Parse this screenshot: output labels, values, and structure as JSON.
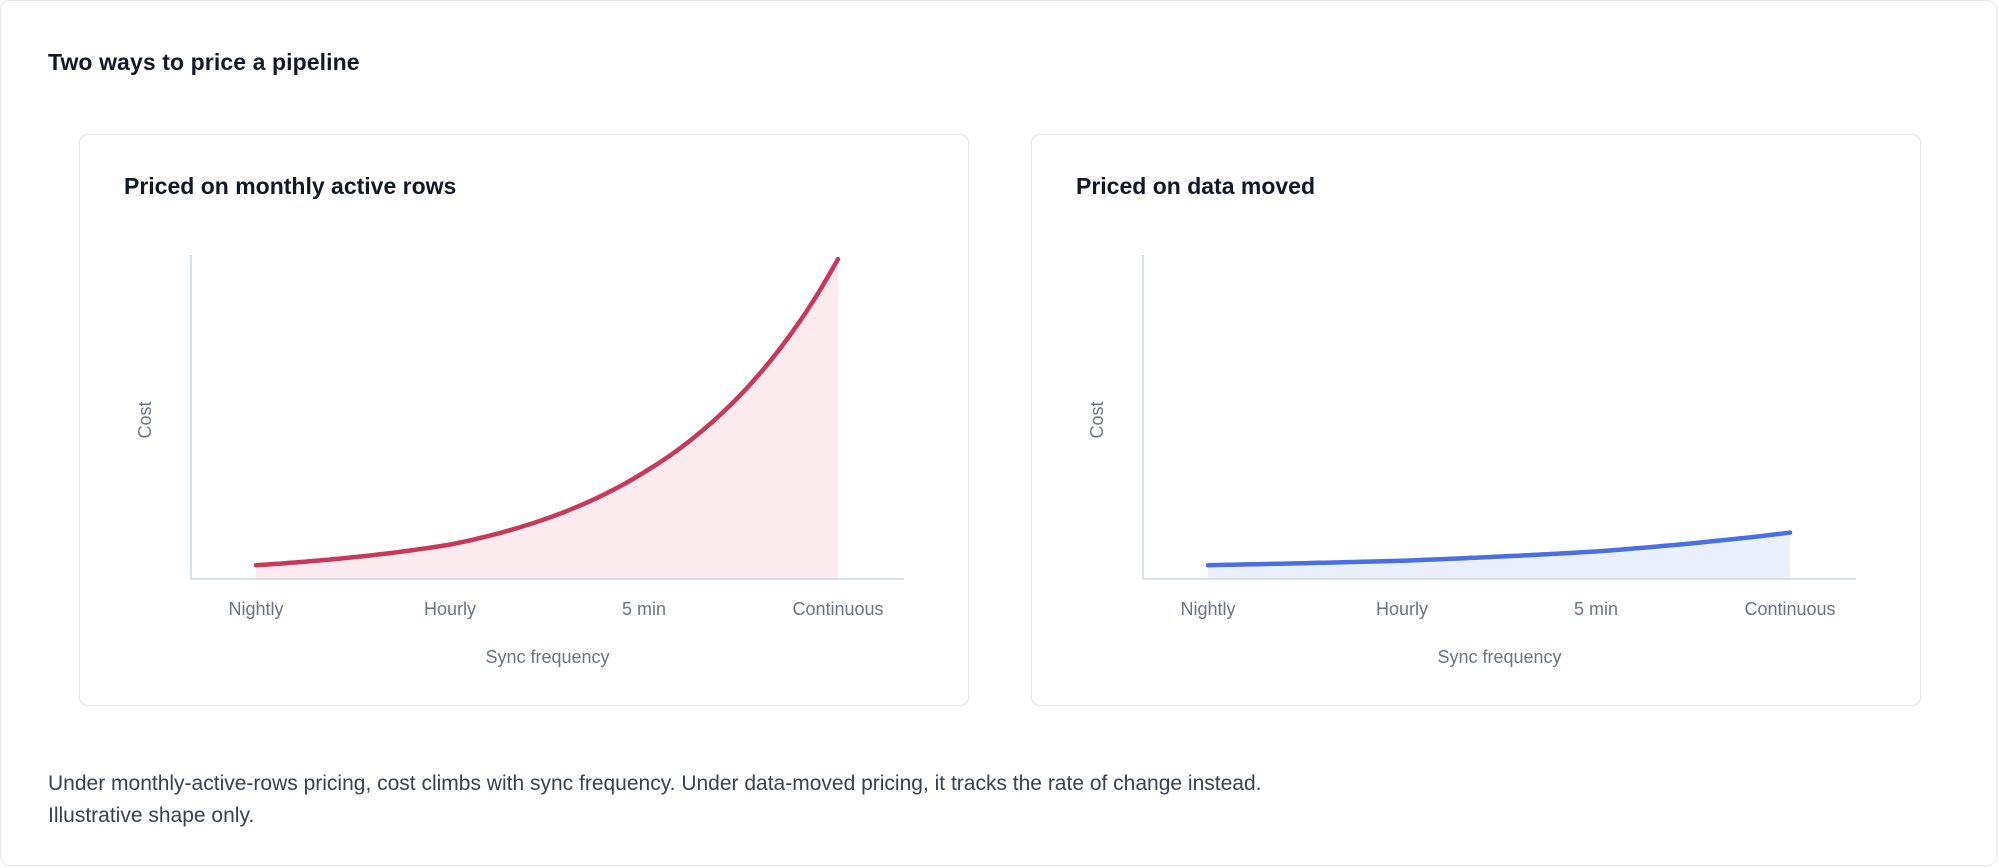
{
  "page": {
    "title": "Two ways to price a pipeline",
    "caption_line1": "Under monthly-active-rows pricing, cost climbs with sync frequency. Under data-moved pricing, it tracks the rate of change instead.",
    "caption_line2": "Illustrative shape only."
  },
  "chart_data": [
    {
      "type": "area",
      "title": "Priced on monthly active rows",
      "xlabel": "Sync frequency",
      "ylabel": "Cost",
      "categories": [
        "Nightly",
        "Hourly",
        "5 min",
        "Continuous"
      ],
      "x": [
        0,
        1,
        2,
        3
      ],
      "ylim": [
        0,
        100
      ],
      "grid": false,
      "series": [
        {
          "values": [
            4,
            10,
            31,
            93
          ],
          "color": "#c8385a",
          "fill": "#fbeaee"
        }
      ]
    },
    {
      "type": "area",
      "title": "Priced on data moved",
      "xlabel": "Sync frequency",
      "ylabel": "Cost",
      "categories": [
        "Nightly",
        "Hourly",
        "5 min",
        "Continuous"
      ],
      "x": [
        0,
        1,
        2,
        3
      ],
      "ylim": [
        0,
        100
      ],
      "grid": false,
      "series": [
        {
          "values": [
            4,
            5.3,
            8,
            13.5
          ],
          "color": "#4a6fe3",
          "fill": "#eaeffc"
        }
      ]
    }
  ]
}
